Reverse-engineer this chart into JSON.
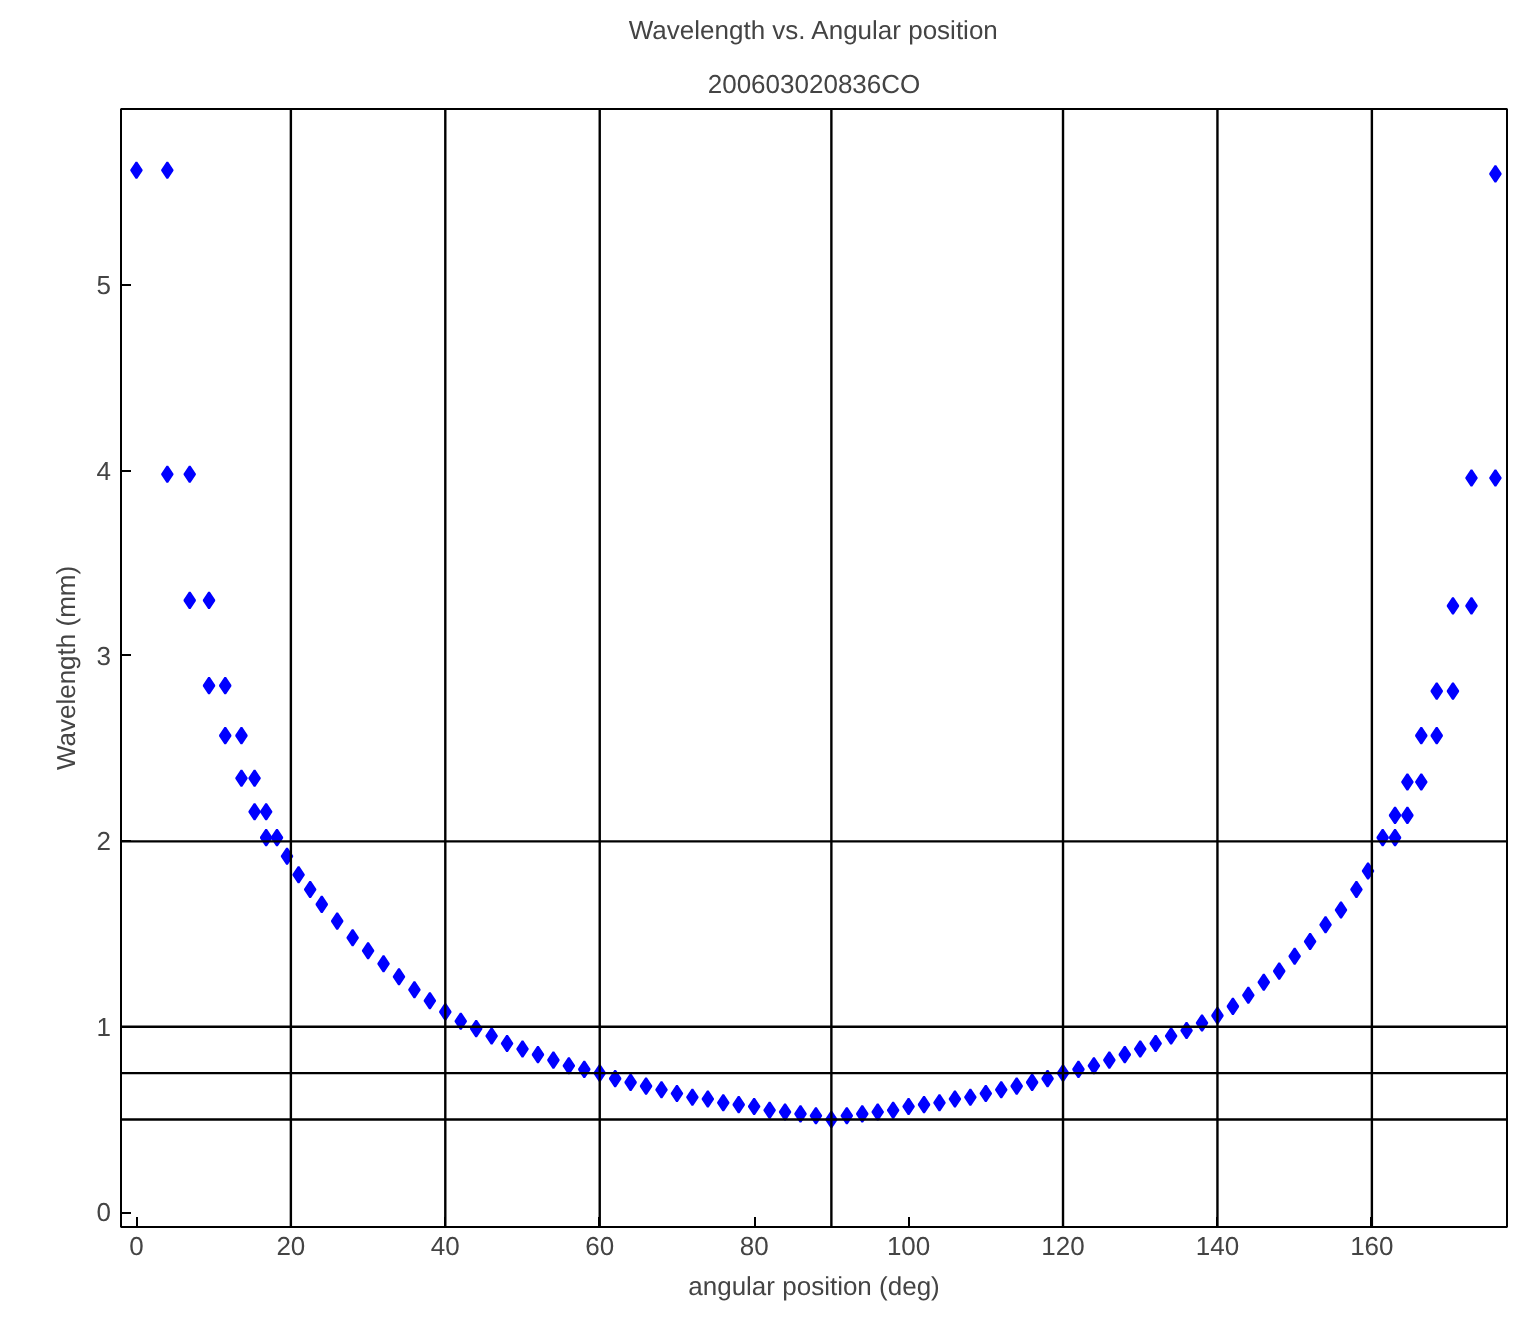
{
  "chart_data": {
    "type": "scatter",
    "title": "Wavelength vs. Angular position",
    "subtitle": "200603020836CO",
    "xlabel": "angular position (deg)",
    "ylabel": "Wavelength (mm)",
    "xlim": [
      -2,
      177.5
    ],
    "ylim": [
      -0.08,
      5.95
    ],
    "xticks": [
      0,
      20,
      40,
      60,
      80,
      100,
      120,
      140,
      160
    ],
    "yticks": [
      0,
      1,
      2,
      3,
      4,
      5
    ],
    "grid": false,
    "marker": "diamond",
    "ref_lines": [
      {
        "axis": "x",
        "value": 20
      },
      {
        "axis": "x",
        "value": 40
      },
      {
        "axis": "x",
        "value": 60
      },
      {
        "axis": "x",
        "value": 90
      },
      {
        "axis": "x",
        "value": 120
      },
      {
        "axis": "x",
        "value": 140
      },
      {
        "axis": "x",
        "value": 160
      },
      {
        "axis": "y",
        "value": 0.5
      },
      {
        "axis": "y",
        "value": 0.75
      },
      {
        "axis": "y",
        "value": 1
      },
      {
        "axis": "y",
        "value": 2
      }
    ],
    "series": [
      {
        "color": "#0000ff",
        "x": [
          0,
          4,
          4,
          6.9,
          6.9,
          9.4,
          9.4,
          11.5,
          11.5,
          13.6,
          13.6,
          15.3,
          15.3,
          16.8,
          16.8,
          18.2,
          19.5,
          21,
          22.5,
          24,
          26,
          28,
          30,
          32,
          34,
          36,
          38,
          40,
          42,
          44,
          46,
          48,
          50,
          52,
          54,
          56,
          58,
          60,
          62,
          64,
          66,
          68,
          70,
          72,
          74,
          76,
          78,
          80,
          82,
          84,
          86,
          88,
          90,
          92,
          94,
          96,
          98,
          100,
          102,
          104,
          106,
          108,
          110,
          112,
          114,
          116,
          118,
          120,
          122,
          124,
          126,
          128,
          130,
          132,
          134,
          136,
          138,
          140,
          142,
          144,
          146,
          148,
          150,
          152,
          154,
          156,
          158,
          159.5,
          161.4,
          163,
          163,
          164.6,
          164.6,
          166.4,
          166.4,
          168.4,
          168.4,
          170.5,
          170.5,
          172.9,
          172.9,
          176,
          176
        ],
        "values": [
          5.62,
          5.62,
          3.98,
          3.98,
          3.3,
          3.3,
          2.84,
          2.84,
          2.57,
          2.57,
          2.34,
          2.34,
          2.16,
          2.16,
          2.02,
          2.02,
          1.92,
          1.82,
          1.74,
          1.66,
          1.57,
          1.48,
          1.41,
          1.34,
          1.27,
          1.2,
          1.14,
          1.08,
          1.03,
          0.99,
          0.95,
          0.91,
          0.88,
          0.85,
          0.82,
          0.79,
          0.77,
          0.75,
          0.72,
          0.7,
          0.68,
          0.66,
          0.64,
          0.62,
          0.61,
          0.59,
          0.58,
          0.57,
          0.55,
          0.54,
          0.53,
          0.52,
          0.5,
          0.52,
          0.53,
          0.54,
          0.55,
          0.57,
          0.58,
          0.59,
          0.61,
          0.62,
          0.64,
          0.66,
          0.68,
          0.7,
          0.72,
          0.75,
          0.77,
          0.79,
          0.82,
          0.85,
          0.88,
          0.91,
          0.95,
          0.98,
          1.02,
          1.06,
          1.11,
          1.17,
          1.24,
          1.3,
          1.38,
          1.46,
          1.55,
          1.63,
          1.74,
          1.84,
          2.02,
          2.02,
          2.14,
          2.14,
          2.32,
          2.32,
          2.57,
          2.57,
          2.81,
          2.81,
          3.27,
          3.27,
          3.96,
          3.96,
          5.6
        ]
      }
    ]
  }
}
